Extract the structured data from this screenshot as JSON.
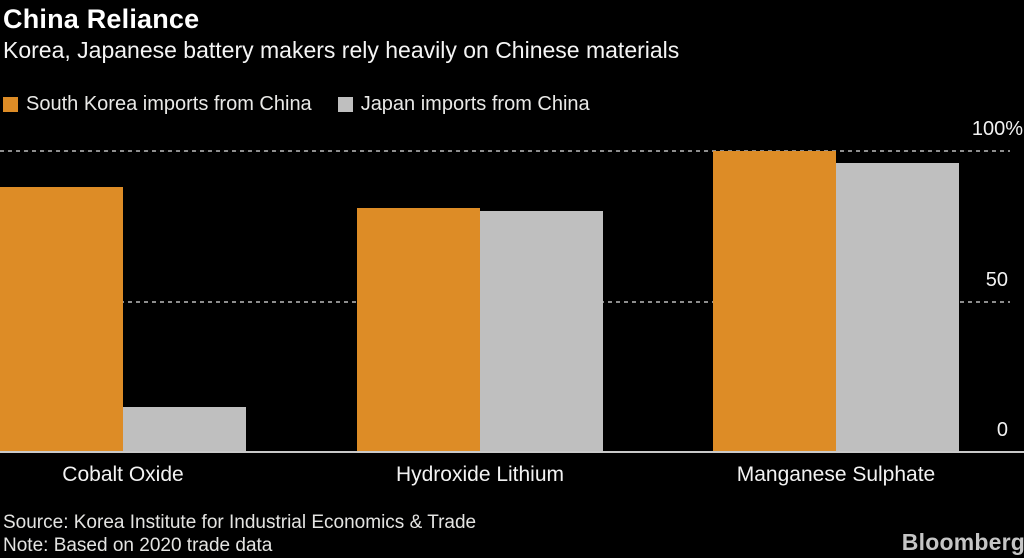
{
  "header": {
    "title": "China Reliance",
    "subtitle": "Korea, Japanese battery makers rely heavily on Chinese materials"
  },
  "colors": {
    "south_korea": "#DD8C26",
    "japan": "#BFBFBF",
    "background": "#000000",
    "gridline": "#8D8D8D",
    "baseline": "#C9C9C9"
  },
  "chart_data": {
    "type": "bar",
    "title": "China Reliance",
    "subtitle": "Korea, Japanese battery makers rely heavily on Chinese materials",
    "categories": [
      "Cobalt Oxide",
      "Hydroxide Lithium",
      "Manganese Sulphate"
    ],
    "series": [
      {
        "name": "South Korea imports from China",
        "color": "#DD8C26",
        "values": [
          88,
          81,
          100
        ]
      },
      {
        "name": "Japan imports from China",
        "color": "#BFBFBF",
        "values": [
          15,
          80,
          96
        ]
      }
    ],
    "xlabel": "",
    "ylabel": "",
    "unit": "%",
    "ylim": [
      0,
      100
    ],
    "yticks": [
      {
        "label": "100%",
        "value": 100,
        "style": "dotted"
      },
      {
        "label": "50",
        "value": 50,
        "style": "dotted"
      },
      {
        "label": "0",
        "value": 0,
        "style": "solid-baseline"
      }
    ],
    "grid": "horizontal dotted at 50 and 100, solid baseline at 0",
    "legend_position": "top-left"
  },
  "footer": {
    "source": "Source: Korea Institute for Industrial Economics & Trade",
    "note": "Note: Based on 2020 trade data",
    "brand": "Bloomberg"
  }
}
